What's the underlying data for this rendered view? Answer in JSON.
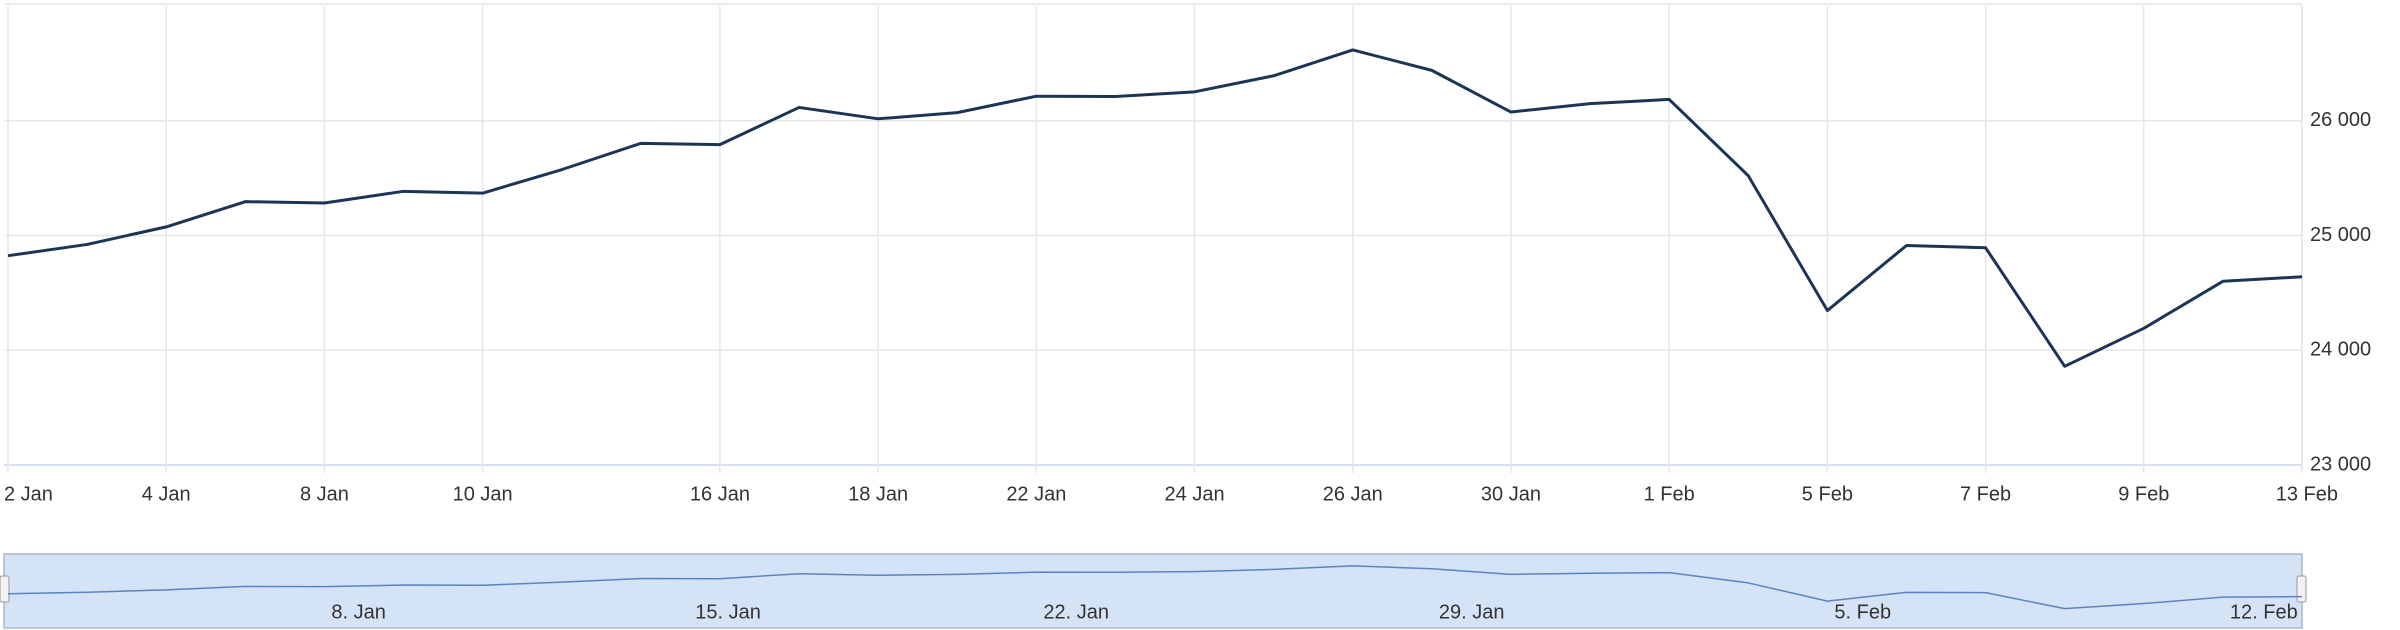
{
  "chart_data": {
    "type": "line",
    "categories": [
      "2 Jan",
      null,
      "4 Jan",
      null,
      "8 Jan",
      null,
      "10 Jan",
      null,
      null,
      "16 Jan",
      null,
      "18 Jan",
      null,
      "22 Jan",
      null,
      "24 Jan",
      null,
      "26 Jan",
      null,
      "30 Jan",
      null,
      "1 Feb",
      null,
      "5 Feb",
      null,
      "7 Feb",
      null,
      "9 Feb",
      null,
      "13 Feb"
    ],
    "values": [
      24824,
      24922,
      25075,
      25295,
      25283,
      25385,
      25369,
      25574,
      25803,
      25792,
      26116,
      26017,
      26071,
      26214,
      26211,
      26252,
      26392,
      26617,
      26439,
      26076,
      26149,
      26186,
      25521,
      24346,
      24913,
      24893,
      23860,
      24191,
      24601,
      24640
    ],
    "color": "#1c3557",
    "ylim": [
      23000,
      27000
    ],
    "yticks": [
      {
        "value": 23000,
        "label": "23 000"
      },
      {
        "value": 24000,
        "label": "24 000"
      },
      {
        "value": 25000,
        "label": "25 000"
      },
      {
        "value": 26000,
        "label": "26 000"
      }
    ],
    "grid": true
  },
  "navigator": {
    "labels": [
      "8. Jan",
      "15. Jan",
      "22. Jan",
      "29. Jan",
      "5. Feb",
      "12. Feb"
    ]
  }
}
